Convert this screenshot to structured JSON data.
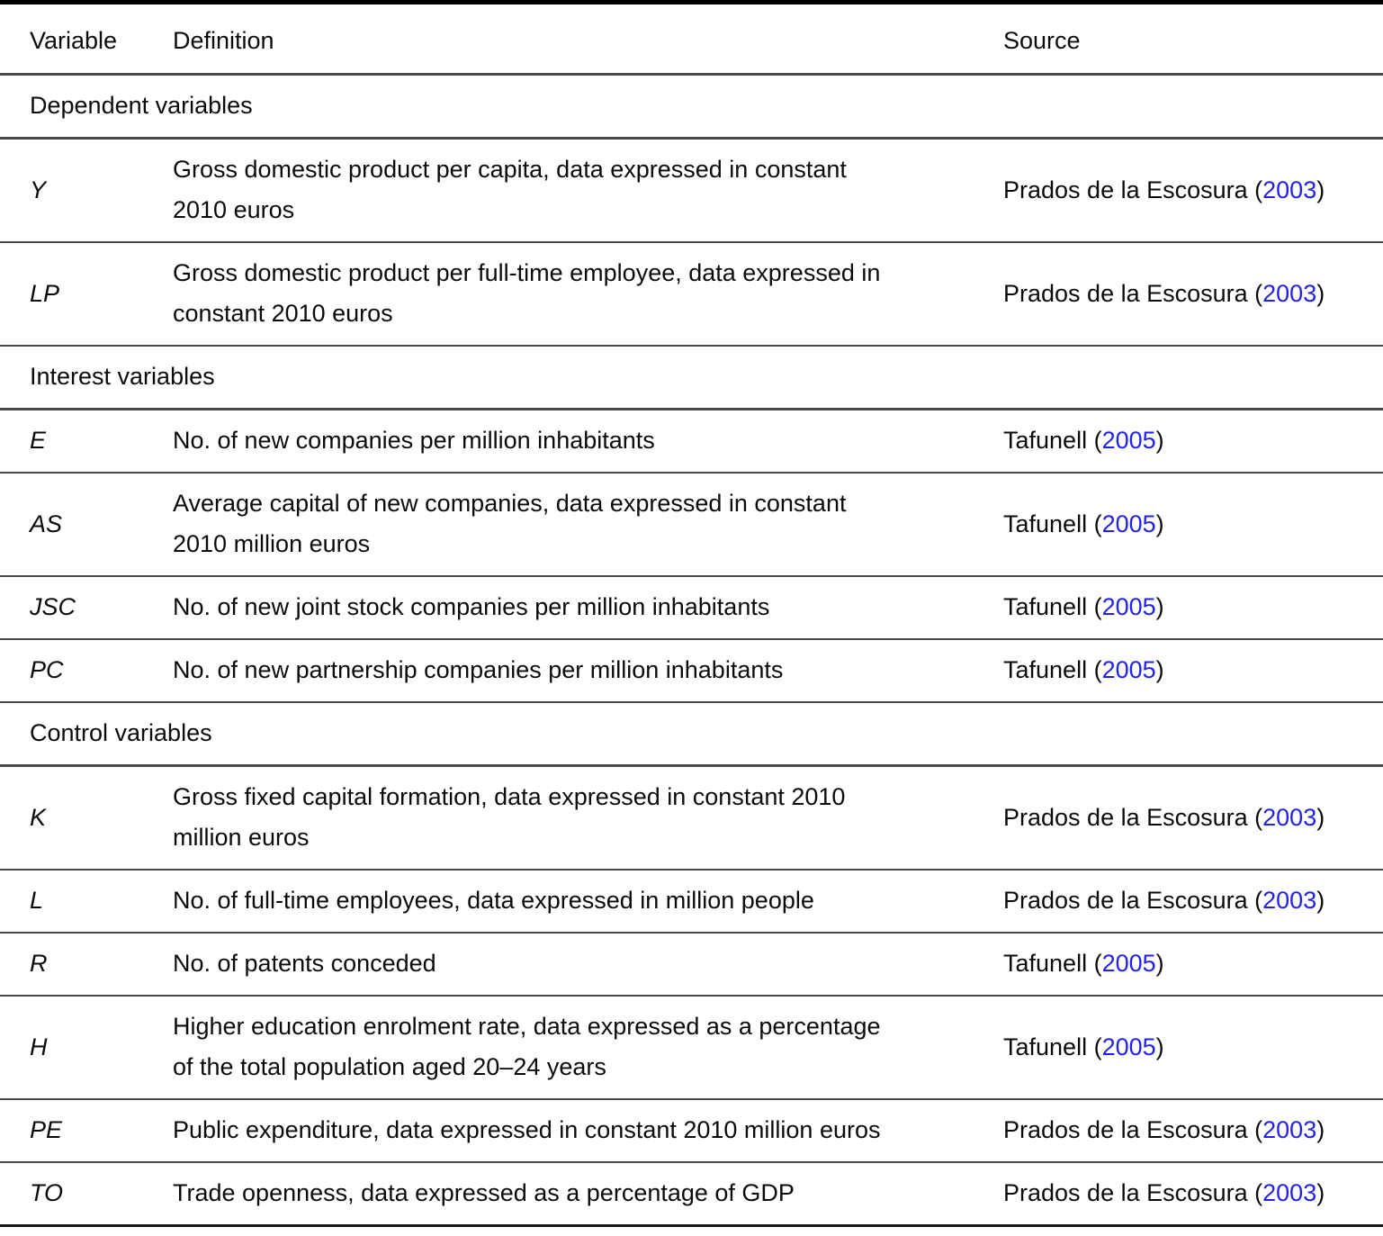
{
  "table": {
    "link_color": "#2222ee",
    "columns": {
      "variable": "Variable",
      "definition": "Definition",
      "source": "Source"
    },
    "sections": [
      {
        "label": "Dependent variables",
        "rows": [
          {
            "variable": "Y",
            "definition": "Gross domestic product per capita, data expressed in constant 2010 euros",
            "source": {
              "pre": "Prados de la Escosura (",
              "year": "2003",
              "post": ")"
            }
          },
          {
            "variable": "LP",
            "definition": "Gross domestic product per full-time employee, data expressed in constant 2010 euros",
            "source": {
              "pre": "Prados de la Escosura (",
              "year": "2003",
              "post": ")"
            }
          }
        ]
      },
      {
        "label": "Interest variables",
        "rows": [
          {
            "variable": "E",
            "definition": "No. of new companies per million inhabitants",
            "source": {
              "pre": "Tafunell (",
              "year": "2005",
              "post": ")"
            }
          },
          {
            "variable": "AS",
            "definition": "Average capital of new companies, data expressed in constant 2010 million euros",
            "source": {
              "pre": "Tafunell (",
              "year": "2005",
              "post": ")"
            }
          },
          {
            "variable": "JSC",
            "definition": "No. of new joint stock companies per million inhabitants",
            "source": {
              "pre": "Tafunell (",
              "year": "2005",
              "post": ")"
            }
          },
          {
            "variable": "PC",
            "definition": "No. of new partnership companies per million inhabitants",
            "source": {
              "pre": "Tafunell (",
              "year": "2005",
              "post": ")"
            }
          }
        ]
      },
      {
        "label": "Control variables",
        "rows": [
          {
            "variable": "K",
            "definition": "Gross fixed capital formation, data expressed in constant 2010 million euros",
            "source": {
              "pre": "Prados de la Escosura (",
              "year": "2003",
              "post": ")"
            }
          },
          {
            "variable": "L",
            "definition": "No. of full-time employees, data expressed in million people",
            "source": {
              "pre": "Prados de la Escosura (",
              "year": "2003",
              "post": ")"
            }
          },
          {
            "variable": "R",
            "definition": "No. of patents conceded",
            "source": {
              "pre": "Tafunell (",
              "year": "2005",
              "post": ")"
            }
          },
          {
            "variable": "H",
            "definition": "Higher education enrolment rate, data expressed as a percentage of the total population aged 20–24 years",
            "source": {
              "pre": "Tafunell (",
              "year": "2005",
              "post": ")"
            }
          },
          {
            "variable": "PE",
            "definition": "Public expenditure, data expressed in constant 2010 million euros",
            "source": {
              "pre": "Prados de la Escosura (",
              "year": "2003",
              "post": ")"
            }
          },
          {
            "variable": "TO",
            "definition": "Trade openness, data expressed as a percentage of GDP",
            "source": {
              "pre": "Prados de la Escosura (",
              "year": "2003",
              "post": ")"
            }
          }
        ]
      }
    ]
  }
}
